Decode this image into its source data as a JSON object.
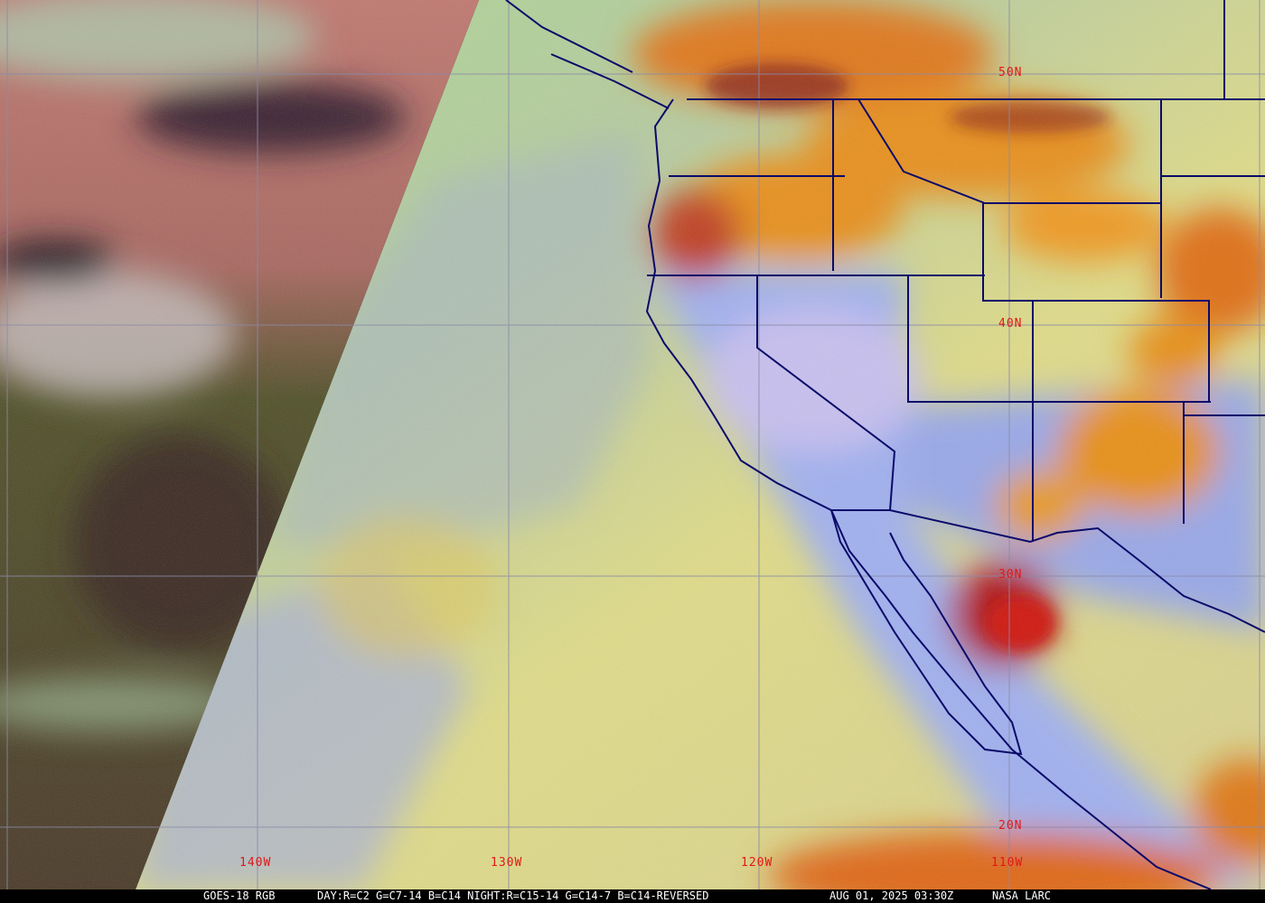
{
  "image": {
    "type": "satellite-rgb-composite",
    "caption": {
      "product": "GOES-18 RGB",
      "recipe": "DAY:R=C2 G=C7-14 B=C14 NIGHT:R=C15-14 G=C14-7 B=C14-REVERSED",
      "timestamp": "AUG 01, 2025 03:30Z",
      "credit": "NASA LARC"
    },
    "latitude_labels": [
      "50N",
      "40N",
      "30N",
      "20N"
    ],
    "longitude_labels": [
      "140W",
      "130W",
      "120W",
      "110W"
    ],
    "colors": {
      "grid": "#8a8aa8",
      "borders": "#0a0a6a",
      "labels": "#e01818",
      "ocean_clear": "#d8d884",
      "land_clear": "#9fb0f0",
      "high_cloud": "#e88a10",
      "night_side": "#4a4a28"
    }
  }
}
